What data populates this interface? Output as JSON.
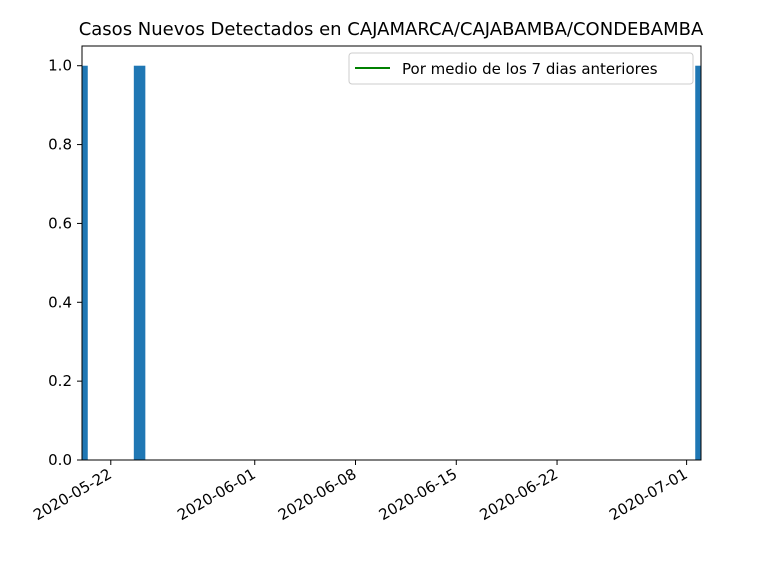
{
  "chart_data": {
    "type": "bar",
    "title": "Casos Nuevos Detectados en CAJAMARCA/CAJABAMBA/CONDEBAMBA",
    "xlabel": "",
    "ylabel": "",
    "x_dates": [
      "2020-05-20",
      "2020-05-24",
      "2020-07-02"
    ],
    "values": [
      1,
      1,
      1
    ],
    "bar_color": "#1f77b4",
    "xlim": [
      "2020-05-20",
      "2020-07-02"
    ],
    "ylim": [
      0,
      1.05
    ],
    "x_ticks": [
      "2020-05-22",
      "2020-06-01",
      "2020-06-08",
      "2020-06-15",
      "2020-06-22",
      "2020-07-01"
    ],
    "y_ticks": [
      "0.0",
      "0.2",
      "0.4",
      "0.6",
      "0.8",
      "1.0"
    ],
    "grid": false,
    "legend": {
      "placement": "top-right",
      "entries": [
        {
          "label": "Por medio de los 7 dias anteriores",
          "color": "#008000",
          "style": "line"
        }
      ]
    }
  }
}
